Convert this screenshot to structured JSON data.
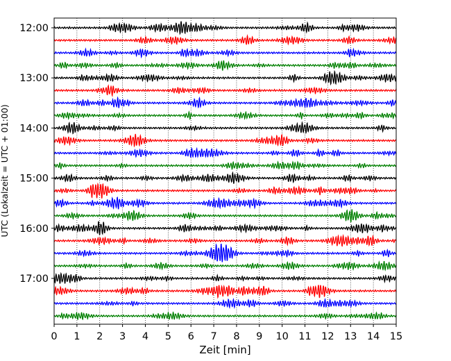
{
  "chart_data": {
    "type": "line",
    "title": "",
    "xlabel": "Zeit  [min]",
    "ylabel": "UTC (Lokalzeit = UTC + 01:00)",
    "xlim": [
      0,
      15
    ],
    "x_ticks": [
      0,
      1,
      2,
      3,
      4,
      5,
      6,
      7,
      8,
      9,
      10,
      11,
      12,
      13,
      14,
      15
    ],
    "y_ticks": [
      "12:00",
      "13:00",
      "14:00",
      "15:00",
      "16:00",
      "17:00"
    ],
    "grid": "vertical dotted",
    "trace_interval_min": 15,
    "trace_colors": [
      "#000000",
      "#ff0000",
      "#0000ff",
      "#008000"
    ],
    "traces": [
      {
        "start": "12:00",
        "color": "#000000"
      },
      {
        "start": "12:15",
        "color": "#ff0000"
      },
      {
        "start": "12:30",
        "color": "#0000ff"
      },
      {
        "start": "12:45",
        "color": "#008000"
      },
      {
        "start": "13:00",
        "color": "#000000"
      },
      {
        "start": "13:15",
        "color": "#ff0000"
      },
      {
        "start": "13:30",
        "color": "#0000ff"
      },
      {
        "start": "13:45",
        "color": "#008000"
      },
      {
        "start": "14:00",
        "color": "#000000"
      },
      {
        "start": "14:15",
        "color": "#ff0000"
      },
      {
        "start": "14:30",
        "color": "#0000ff"
      },
      {
        "start": "14:45",
        "color": "#008000"
      },
      {
        "start": "15:00",
        "color": "#000000"
      },
      {
        "start": "15:15",
        "color": "#ff0000"
      },
      {
        "start": "15:30",
        "color": "#0000ff"
      },
      {
        "start": "15:45",
        "color": "#008000"
      },
      {
        "start": "16:00",
        "color": "#000000"
      },
      {
        "start": "16:15",
        "color": "#ff0000"
      },
      {
        "start": "16:30",
        "color": "#0000ff"
      },
      {
        "start": "16:45",
        "color": "#008000"
      },
      {
        "start": "17:00",
        "color": "#000000"
      },
      {
        "start": "17:15",
        "color": "#ff0000"
      },
      {
        "start": "17:30",
        "color": "#0000ff"
      },
      {
        "start": "17:45",
        "color": "#008000"
      }
    ]
  }
}
